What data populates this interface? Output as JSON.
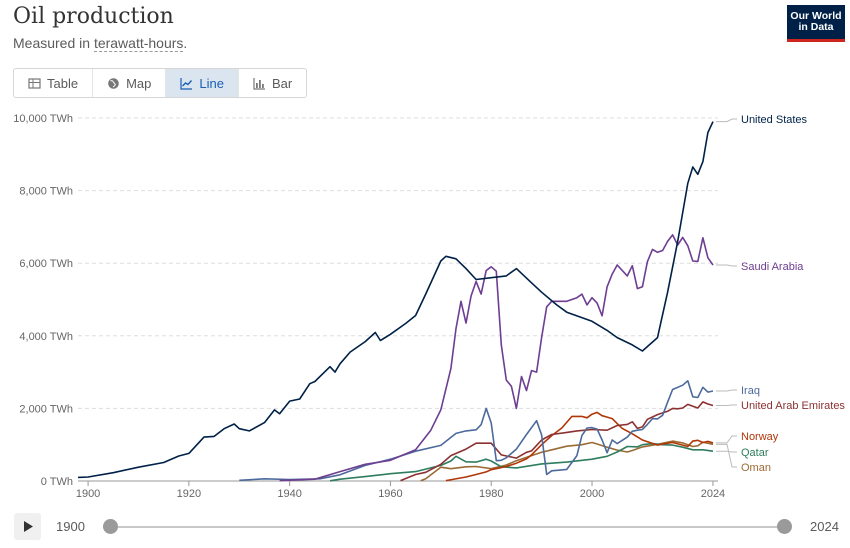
{
  "header": {
    "title": "Oil production",
    "subtitle_prefix": "Measured in ",
    "subtitle_term": "terawatt-hours",
    "subtitle_suffix": ".",
    "logo_line1": "Our World",
    "logo_line2": "in Data"
  },
  "tabs": [
    {
      "label": "Table",
      "icon": "table-icon"
    },
    {
      "label": "Map",
      "icon": "globe-icon"
    },
    {
      "label": "Line",
      "icon": "line-chart-icon",
      "active": true
    },
    {
      "label": "Bar",
      "icon": "bar-chart-icon"
    }
  ],
  "timeline": {
    "start": "1900",
    "end": "2024"
  },
  "chart_data": {
    "type": "line",
    "title": "",
    "xlim": [
      1898,
      2025
    ],
    "ylim": [
      0,
      10000
    ],
    "xticks": [
      1900,
      1920,
      1940,
      1960,
      1980,
      2000,
      2024
    ],
    "yticks": [
      {
        "v": 0,
        "label": "0 TWh"
      },
      {
        "v": 2000,
        "label": "2,000 TWh"
      },
      {
        "v": 4000,
        "label": "4,000 TWh"
      },
      {
        "v": 6000,
        "label": "6,000 TWh"
      },
      {
        "v": 8000,
        "label": "8,000 TWh"
      },
      {
        "v": 10000,
        "label": "10,000 TWh"
      }
    ],
    "grid": true,
    "series": [
      {
        "name": "United States",
        "color": "#002147",
        "label_y": 10000,
        "points": [
          [
            1898,
            100
          ],
          [
            1900,
            110
          ],
          [
            1905,
            230
          ],
          [
            1910,
            380
          ],
          [
            1915,
            510
          ],
          [
            1918,
            690
          ],
          [
            1920,
            760
          ],
          [
            1923,
            1210
          ],
          [
            1925,
            1230
          ],
          [
            1927,
            1440
          ],
          [
            1929,
            1570
          ],
          [
            1930,
            1440
          ],
          [
            1932,
            1380
          ],
          [
            1935,
            1610
          ],
          [
            1937,
            1960
          ],
          [
            1938,
            1850
          ],
          [
            1940,
            2200
          ],
          [
            1942,
            2260
          ],
          [
            1944,
            2680
          ],
          [
            1945,
            2740
          ],
          [
            1948,
            3150
          ],
          [
            1949,
            3000
          ],
          [
            1950,
            3230
          ],
          [
            1952,
            3550
          ],
          [
            1955,
            3840
          ],
          [
            1957,
            4090
          ],
          [
            1958,
            3870
          ],
          [
            1960,
            4040
          ],
          [
            1963,
            4340
          ],
          [
            1965,
            4560
          ],
          [
            1967,
            5150
          ],
          [
            1970,
            6060
          ],
          [
            1971,
            6190
          ],
          [
            1973,
            6120
          ],
          [
            1975,
            5850
          ],
          [
            1977,
            5550
          ],
          [
            1980,
            5600
          ],
          [
            1983,
            5650
          ],
          [
            1985,
            5850
          ],
          [
            1988,
            5460
          ],
          [
            1990,
            5200
          ],
          [
            1993,
            4850
          ],
          [
            1995,
            4650
          ],
          [
            2000,
            4400
          ],
          [
            2003,
            4150
          ],
          [
            2005,
            3950
          ],
          [
            2008,
            3750
          ],
          [
            2010,
            3580
          ],
          [
            2013,
            3950
          ],
          [
            2015,
            5200
          ],
          [
            2017,
            6600
          ],
          [
            2019,
            8200
          ],
          [
            2020,
            8650
          ],
          [
            2021,
            8450
          ],
          [
            2022,
            8800
          ],
          [
            2023,
            9600
          ],
          [
            2024,
            9900
          ]
        ]
      },
      {
        "name": "Saudi Arabia",
        "color": "#6d3e91",
        "label_y": 5950,
        "points": [
          [
            1938,
            10
          ],
          [
            1945,
            50
          ],
          [
            1950,
            260
          ],
          [
            1955,
            460
          ],
          [
            1960,
            570
          ],
          [
            1965,
            860
          ],
          [
            1968,
            1400
          ],
          [
            1970,
            1960
          ],
          [
            1972,
            3100
          ],
          [
            1973,
            4200
          ],
          [
            1974,
            4950
          ],
          [
            1975,
            4350
          ],
          [
            1976,
            5100
          ],
          [
            1977,
            5500
          ],
          [
            1978,
            5150
          ],
          [
            1979,
            5800
          ],
          [
            1980,
            5900
          ],
          [
            1981,
            5780
          ],
          [
            1982,
            3750
          ],
          [
            1983,
            2780
          ],
          [
            1984,
            2610
          ],
          [
            1985,
            2000
          ],
          [
            1986,
            2880
          ],
          [
            1987,
            2490
          ],
          [
            1988,
            3040
          ],
          [
            1989,
            3000
          ],
          [
            1990,
            3950
          ],
          [
            1991,
            4800
          ],
          [
            1992,
            4950
          ],
          [
            1995,
            4950
          ],
          [
            1997,
            5050
          ],
          [
            1998,
            5150
          ],
          [
            1999,
            4850
          ],
          [
            2000,
            5050
          ],
          [
            2001,
            4900
          ],
          [
            2002,
            4550
          ],
          [
            2003,
            5350
          ],
          [
            2004,
            5700
          ],
          [
            2005,
            5950
          ],
          [
            2007,
            5650
          ],
          [
            2008,
            5930
          ],
          [
            2009,
            5300
          ],
          [
            2010,
            5350
          ],
          [
            2011,
            6040
          ],
          [
            2012,
            6380
          ],
          [
            2013,
            6300
          ],
          [
            2014,
            6350
          ],
          [
            2015,
            6600
          ],
          [
            2016,
            6780
          ],
          [
            2017,
            6500
          ],
          [
            2018,
            6710
          ],
          [
            2019,
            6480
          ],
          [
            2020,
            6060
          ],
          [
            2021,
            6050
          ],
          [
            2022,
            6700
          ],
          [
            2023,
            6150
          ],
          [
            2024,
            5950
          ]
        ]
      },
      {
        "name": "Iraq",
        "color": "#4c6a9c",
        "label_y": 2520,
        "points": [
          [
            1930,
            20
          ],
          [
            1935,
            60
          ],
          [
            1940,
            40
          ],
          [
            1946,
            60
          ],
          [
            1950,
            170
          ],
          [
            1955,
            430
          ],
          [
            1960,
            600
          ],
          [
            1965,
            820
          ],
          [
            1970,
            980
          ],
          [
            1973,
            1310
          ],
          [
            1975,
            1380
          ],
          [
            1977,
            1410
          ],
          [
            1978,
            1550
          ],
          [
            1979,
            2000
          ],
          [
            1980,
            1600
          ],
          [
            1981,
            560
          ],
          [
            1982,
            570
          ],
          [
            1983,
            640
          ],
          [
            1985,
            880
          ],
          [
            1987,
            1280
          ],
          [
            1989,
            1660
          ],
          [
            1990,
            1270
          ],
          [
            1991,
            180
          ],
          [
            1992,
            280
          ],
          [
            1995,
            320
          ],
          [
            1997,
            700
          ],
          [
            1998,
            1250
          ],
          [
            1999,
            1460
          ],
          [
            2000,
            1470
          ],
          [
            2001,
            1430
          ],
          [
            2002,
            1130
          ],
          [
            2003,
            780
          ],
          [
            2004,
            1130
          ],
          [
            2005,
            1030
          ],
          [
            2006,
            1120
          ],
          [
            2007,
            1210
          ],
          [
            2008,
            1370
          ],
          [
            2009,
            1400
          ],
          [
            2010,
            1420
          ],
          [
            2011,
            1560
          ],
          [
            2012,
            1720
          ],
          [
            2013,
            1710
          ],
          [
            2014,
            1810
          ],
          [
            2015,
            2170
          ],
          [
            2016,
            2520
          ],
          [
            2018,
            2640
          ],
          [
            2019,
            2760
          ],
          [
            2020,
            2320
          ],
          [
            2021,
            2300
          ],
          [
            2022,
            2580
          ],
          [
            2023,
            2450
          ],
          [
            2024,
            2480
          ]
        ]
      },
      {
        "name": "United Arab Emirates",
        "color": "#8c3131",
        "label_y": 2080,
        "points": [
          [
            1962,
            10
          ],
          [
            1965,
            180
          ],
          [
            1967,
            240
          ],
          [
            1970,
            460
          ],
          [
            1972,
            700
          ],
          [
            1975,
            880
          ],
          [
            1977,
            1040
          ],
          [
            1980,
            1040
          ],
          [
            1982,
            720
          ],
          [
            1985,
            630
          ],
          [
            1987,
            790
          ],
          [
            1988,
            830
          ],
          [
            1990,
            1130
          ],
          [
            1992,
            1280
          ],
          [
            1995,
            1340
          ],
          [
            1997,
            1380
          ],
          [
            2000,
            1420
          ],
          [
            2003,
            1400
          ],
          [
            2005,
            1530
          ],
          [
            2007,
            1560
          ],
          [
            2008,
            1630
          ],
          [
            2009,
            1450
          ],
          [
            2010,
            1490
          ],
          [
            2011,
            1700
          ],
          [
            2013,
            1830
          ],
          [
            2015,
            1920
          ],
          [
            2016,
            2000
          ],
          [
            2017,
            1990
          ],
          [
            2018,
            2010
          ],
          [
            2019,
            2110
          ],
          [
            2020,
            2060
          ],
          [
            2021,
            2010
          ],
          [
            2022,
            2180
          ],
          [
            2023,
            2120
          ],
          [
            2024,
            2080
          ]
        ]
      },
      {
        "name": "Norway",
        "color": "#b13507",
        "label_y": 1050,
        "points": [
          [
            1971,
            10
          ],
          [
            1975,
            110
          ],
          [
            1977,
            180
          ],
          [
            1979,
            250
          ],
          [
            1980,
            310
          ],
          [
            1983,
            400
          ],
          [
            1985,
            490
          ],
          [
            1987,
            610
          ],
          [
            1988,
            720
          ],
          [
            1990,
            1000
          ],
          [
            1992,
            1250
          ],
          [
            1994,
            1460
          ],
          [
            1996,
            1780
          ],
          [
            1998,
            1780
          ],
          [
            1999,
            1740
          ],
          [
            2000,
            1840
          ],
          [
            2001,
            1890
          ],
          [
            2002,
            1800
          ],
          [
            2003,
            1760
          ],
          [
            2004,
            1720
          ],
          [
            2005,
            1580
          ],
          [
            2006,
            1450
          ],
          [
            2008,
            1300
          ],
          [
            2010,
            1130
          ],
          [
            2013,
            990
          ],
          [
            2015,
            1040
          ],
          [
            2016,
            1060
          ],
          [
            2018,
            990
          ],
          [
            2019,
            950
          ],
          [
            2020,
            1100
          ],
          [
            2021,
            1120
          ],
          [
            2022,
            1060
          ],
          [
            2023,
            1090
          ],
          [
            2024,
            1050
          ]
        ]
      },
      {
        "name": "Qatar",
        "color": "#2e7d5e",
        "label_y": 820,
        "points": [
          [
            1948,
            5
          ],
          [
            1950,
            50
          ],
          [
            1955,
            120
          ],
          [
            1960,
            200
          ],
          [
            1965,
            260
          ],
          [
            1970,
            430
          ],
          [
            1972,
            550
          ],
          [
            1973,
            680
          ],
          [
            1975,
            530
          ],
          [
            1977,
            520
          ],
          [
            1979,
            600
          ],
          [
            1980,
            550
          ],
          [
            1982,
            390
          ],
          [
            1985,
            360
          ],
          [
            1990,
            470
          ],
          [
            1995,
            520
          ],
          [
            2000,
            600
          ],
          [
            2003,
            680
          ],
          [
            2005,
            800
          ],
          [
            2007,
            950
          ],
          [
            2009,
            940
          ],
          [
            2010,
            1000
          ],
          [
            2012,
            1030
          ],
          [
            2014,
            1000
          ],
          [
            2016,
            990
          ],
          [
            2018,
            930
          ],
          [
            2020,
            860
          ],
          [
            2022,
            860
          ],
          [
            2024,
            820
          ]
        ]
      },
      {
        "name": "Oman",
        "color": "#9a6b35",
        "label_y": 570,
        "points": [
          [
            1966,
            5
          ],
          [
            1967,
            60
          ],
          [
            1970,
            380
          ],
          [
            1972,
            340
          ],
          [
            1975,
            390
          ],
          [
            1977,
            400
          ],
          [
            1980,
            340
          ],
          [
            1983,
            440
          ],
          [
            1985,
            560
          ],
          [
            1990,
            790
          ],
          [
            1995,
            960
          ],
          [
            1998,
            1000
          ],
          [
            2000,
            1060
          ],
          [
            2001,
            1020
          ],
          [
            2003,
            930
          ],
          [
            2005,
            850
          ],
          [
            2007,
            800
          ],
          [
            2008,
            840
          ],
          [
            2010,
            940
          ],
          [
            2013,
            1010
          ],
          [
            2016,
            1100
          ],
          [
            2018,
            1050
          ],
          [
            2019,
            1000
          ],
          [
            2020,
            950
          ],
          [
            2021,
            970
          ],
          [
            2022,
            1070
          ],
          [
            2024,
            1010
          ]
        ]
      }
    ]
  }
}
